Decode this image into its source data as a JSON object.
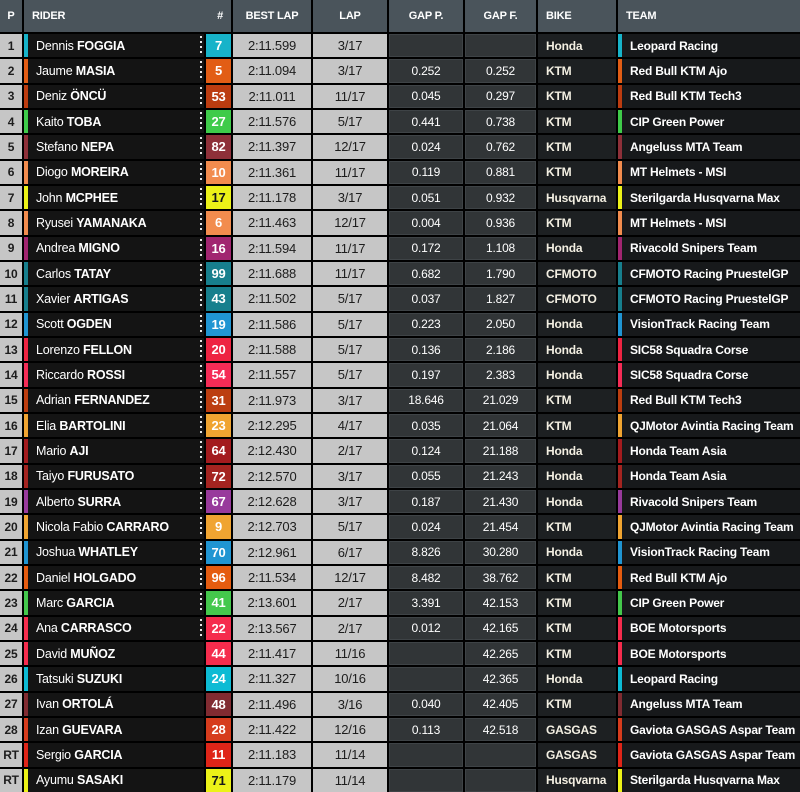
{
  "table": {
    "headers": {
      "p": "P",
      "rider": "RIDER",
      "num": "#",
      "best_lap": "BEST LAP",
      "lap": "LAP",
      "gap_p": "GAP P.",
      "gap_f": "GAP F.",
      "bike": "BIKE",
      "team": "TEAM"
    },
    "rows": [
      {
        "pos": "1",
        "first": "Dennis",
        "last": "FOGGIA",
        "num": "7",
        "color": "#17b3c9",
        "num_text": "#ffffff",
        "best_lap": "2:11.599",
        "lap": "3/17",
        "gap_p": "",
        "gap_f": "",
        "bike": "Honda",
        "team": "Leopard Racing",
        "dotted": true
      },
      {
        "pos": "2",
        "first": "Jaume",
        "last": "MASIA",
        "num": "5",
        "color": "#e25d15",
        "num_text": "#ffffff",
        "best_lap": "2:11.094",
        "lap": "3/17",
        "gap_p": "0.252",
        "gap_f": "0.252",
        "bike": "KTM",
        "team": "Red Bull KTM Ajo",
        "dotted": true
      },
      {
        "pos": "3",
        "first": "Deniz",
        "last": "ÖNCÜ",
        "num": "53",
        "color": "#bc3c10",
        "num_text": "#ffffff",
        "best_lap": "2:11.011",
        "lap": "11/17",
        "gap_p": "0.045",
        "gap_f": "0.297",
        "bike": "KTM",
        "team": "Red Bull KTM Tech3",
        "dotted": true
      },
      {
        "pos": "4",
        "first": "Kaito",
        "last": "TOBA",
        "num": "27",
        "color": "#3fcb4a",
        "num_text": "#ffffff",
        "best_lap": "2:11.576",
        "lap": "5/17",
        "gap_p": "0.441",
        "gap_f": "0.738",
        "bike": "KTM",
        "team": "CIP Green Power",
        "dotted": true
      },
      {
        "pos": "5",
        "first": "Stefano",
        "last": "NEPA",
        "num": "82",
        "color": "#8e3039",
        "num_text": "#ffffff",
        "best_lap": "2:11.397",
        "lap": "12/17",
        "gap_p": "0.024",
        "gap_f": "0.762",
        "bike": "KTM",
        "team": "Angeluss MTA Team",
        "dotted": true
      },
      {
        "pos": "6",
        "first": "Diogo",
        "last": "MOREIRA",
        "num": "10",
        "color": "#f28c4e",
        "num_text": "#ffffff",
        "best_lap": "2:11.361",
        "lap": "11/17",
        "gap_p": "0.119",
        "gap_f": "0.881",
        "bike": "KTM",
        "team": "MT Helmets - MSI",
        "dotted": true
      },
      {
        "pos": "7",
        "first": "John",
        "last": "MCPHEE",
        "num": "17",
        "color": "#ecf218",
        "num_text": "#15181a",
        "best_lap": "2:11.178",
        "lap": "3/17",
        "gap_p": "0.051",
        "gap_f": "0.932",
        "bike": "Husqvarna",
        "team": "Sterilgarda Husqvarna Max",
        "dotted": true
      },
      {
        "pos": "8",
        "first": "Ryusei",
        "last": "YAMANAKA",
        "num": "6",
        "color": "#f28c4e",
        "num_text": "#ffffff",
        "best_lap": "2:11.463",
        "lap": "12/17",
        "gap_p": "0.004",
        "gap_f": "0.936",
        "bike": "KTM",
        "team": "MT Helmets - MSI",
        "dotted": true
      },
      {
        "pos": "9",
        "first": "Andrea",
        "last": "MIGNO",
        "num": "16",
        "color": "#a12570",
        "num_text": "#ffffff",
        "best_lap": "2:11.594",
        "lap": "11/17",
        "gap_p": "0.172",
        "gap_f": "1.108",
        "bike": "Honda",
        "team": "Rivacold Snipers Team",
        "dotted": true
      },
      {
        "pos": "10",
        "first": "Carlos",
        "last": "TATAY",
        "num": "99",
        "color": "#177f8d",
        "num_text": "#ffffff",
        "best_lap": "2:11.688",
        "lap": "11/17",
        "gap_p": "0.682",
        "gap_f": "1.790",
        "bike": "CFMOTO",
        "team": "CFMOTO Racing PruestelGP",
        "dotted": true
      },
      {
        "pos": "11",
        "first": "Xavier",
        "last": "ARTIGAS",
        "num": "43",
        "color": "#177f8d",
        "num_text": "#ffffff",
        "best_lap": "2:11.502",
        "lap": "5/17",
        "gap_p": "0.037",
        "gap_f": "1.827",
        "bike": "CFMOTO",
        "team": "CFMOTO Racing PruestelGP",
        "dotted": true
      },
      {
        "pos": "12",
        "first": "Scott",
        "last": "OGDEN",
        "num": "19",
        "color": "#2095d2",
        "num_text": "#ffffff",
        "best_lap": "2:11.586",
        "lap": "5/17",
        "gap_p": "0.223",
        "gap_f": "2.050",
        "bike": "Honda",
        "team": "VisionTrack Racing Team",
        "dotted": true
      },
      {
        "pos": "13",
        "first": "Lorenzo",
        "last": "FELLON",
        "num": "20",
        "color": "#ee2442",
        "num_text": "#ffffff",
        "best_lap": "2:11.588",
        "lap": "5/17",
        "gap_p": "0.136",
        "gap_f": "2.186",
        "bike": "Honda",
        "team": "SIC58 Squadra Corse",
        "dotted": true
      },
      {
        "pos": "14",
        "first": "Riccardo",
        "last": "ROSSI",
        "num": "54",
        "color": "#f52c56",
        "num_text": "#ffffff",
        "best_lap": "2:11.557",
        "lap": "5/17",
        "gap_p": "0.197",
        "gap_f": "2.383",
        "bike": "Honda",
        "team": "SIC58 Squadra Corse",
        "dotted": true
      },
      {
        "pos": "15",
        "first": "Adrian",
        "last": "FERNANDEZ",
        "num": "31",
        "color": "#bc3e10",
        "num_text": "#ffffff",
        "best_lap": "2:11.973",
        "lap": "3/17",
        "gap_p": "18.646",
        "gap_f": "21.029",
        "bike": "KTM",
        "team": "Red Bull KTM Tech3",
        "dotted": true
      },
      {
        "pos": "16",
        "first": "Elia",
        "last": "BARTOLINI",
        "num": "23",
        "color": "#f0a431",
        "num_text": "#ffffff",
        "best_lap": "2:12.295",
        "lap": "4/17",
        "gap_p": "0.035",
        "gap_f": "21.064",
        "bike": "KTM",
        "team": "QJMotor Avintia Racing Team",
        "dotted": true
      },
      {
        "pos": "17",
        "first": "Mario",
        "last": "AJI",
        "num": "64",
        "color": "#a31b1e",
        "num_text": "#ffffff",
        "best_lap": "2:12.430",
        "lap": "2/17",
        "gap_p": "0.124",
        "gap_f": "21.188",
        "bike": "Honda",
        "team": "Honda Team Asia",
        "dotted": true
      },
      {
        "pos": "18",
        "first": "Taiyo",
        "last": "FURUSATO",
        "num": "72",
        "color": "#a42420",
        "num_text": "#ffffff",
        "best_lap": "2:12.570",
        "lap": "3/17",
        "gap_p": "0.055",
        "gap_f": "21.243",
        "bike": "Honda",
        "team": "Honda Team Asia",
        "dotted": true
      },
      {
        "pos": "19",
        "first": "Alberto",
        "last": "SURRA",
        "num": "67",
        "color": "#983a9c",
        "num_text": "#ffffff",
        "best_lap": "2:12.628",
        "lap": "3/17",
        "gap_p": "0.187",
        "gap_f": "21.430",
        "bike": "Honda",
        "team": "Rivacold Snipers Team",
        "dotted": true
      },
      {
        "pos": "20",
        "first": "Nicola Fabio",
        "last": "CARRARO",
        "num": "9",
        "color": "#f0a431",
        "num_text": "#ffffff",
        "best_lap": "2:12.703",
        "lap": "5/17",
        "gap_p": "0.024",
        "gap_f": "21.454",
        "bike": "KTM",
        "team": "QJMotor Avintia Racing Team",
        "dotted": true
      },
      {
        "pos": "21",
        "first": "Joshua",
        "last": "WHATLEY",
        "num": "70",
        "color": "#2095d2",
        "num_text": "#ffffff",
        "best_lap": "2:12.961",
        "lap": "6/17",
        "gap_p": "8.826",
        "gap_f": "30.280",
        "bike": "Honda",
        "team": "VisionTrack Racing Team",
        "dotted": true
      },
      {
        "pos": "22",
        "first": "Daniel",
        "last": "HOLGADO",
        "num": "96",
        "color": "#e55c10",
        "num_text": "#ffffff",
        "best_lap": "2:11.534",
        "lap": "12/17",
        "gap_p": "8.482",
        "gap_f": "38.762",
        "bike": "KTM",
        "team": "Red Bull KTM Ajo",
        "dotted": true
      },
      {
        "pos": "23",
        "first": "Marc",
        "last": "GARCIA",
        "num": "41",
        "color": "#44c84c",
        "num_text": "#ffffff",
        "best_lap": "2:13.601",
        "lap": "2/17",
        "gap_p": "3.391",
        "gap_f": "42.153",
        "bike": "KTM",
        "team": "CIP Green Power",
        "dotted": true
      },
      {
        "pos": "24",
        "first": "Ana",
        "last": "CARRASCO",
        "num": "22",
        "color": "#f52c4d",
        "num_text": "#ffffff",
        "best_lap": "2:13.567",
        "lap": "2/17",
        "gap_p": "0.012",
        "gap_f": "42.165",
        "bike": "KTM",
        "team": "BOE Motorsports",
        "dotted": true
      },
      {
        "pos": "25",
        "first": "David",
        "last": "MUÑOZ",
        "num": "44",
        "color": "#f52c4d",
        "num_text": "#ffffff",
        "best_lap": "2:11.417",
        "lap": "11/16",
        "gap_p": "",
        "gap_f": "42.265",
        "bike": "KTM",
        "team": "BOE Motorsports",
        "dotted": false
      },
      {
        "pos": "26",
        "first": "Tatsuki",
        "last": "SUZUKI",
        "num": "24",
        "color": "#0dbbd4",
        "num_text": "#ffffff",
        "best_lap": "2:11.327",
        "lap": "10/16",
        "gap_p": "",
        "gap_f": "42.365",
        "bike": "Honda",
        "team": "Leopard Racing",
        "dotted": false
      },
      {
        "pos": "27",
        "first": "Ivan",
        "last": "ORTOLÁ",
        "num": "48",
        "color": "#812b31",
        "num_text": "#ffffff",
        "best_lap": "2:11.496",
        "lap": "3/16",
        "gap_p": "0.040",
        "gap_f": "42.405",
        "bike": "KTM",
        "team": "Angeluss MTA Team",
        "dotted": false
      },
      {
        "pos": "28",
        "first": "Izan",
        "last": "GUEVARA",
        "num": "28",
        "color": "#d63c1d",
        "num_text": "#ffffff",
        "best_lap": "2:11.422",
        "lap": "12/16",
        "gap_p": "0.113",
        "gap_f": "42.518",
        "bike": "GASGAS",
        "team": "Gaviota GASGAS Aspar Team",
        "dotted": false
      },
      {
        "pos": "RT",
        "first": "Sergio",
        "last": "GARCIA",
        "num": "11",
        "color": "#df2518",
        "num_text": "#ffffff",
        "best_lap": "2:11.183",
        "lap": "11/14",
        "gap_p": "",
        "gap_f": "",
        "bike": "GASGAS",
        "team": "Gaviota GASGAS Aspar Team",
        "dotted": false
      },
      {
        "pos": "RT",
        "first": "Ayumu",
        "last": "SASAKI",
        "num": "71",
        "color": "#ecf218",
        "num_text": "#15181a",
        "best_lap": "2:11.179",
        "lap": "11/14",
        "gap_p": "",
        "gap_f": "",
        "bike": "Husqvarna",
        "team": "Sterilgarda Husqvarna Max",
        "dotted": false
      }
    ]
  },
  "colors": {
    "header_bg": "#4a545b",
    "light_cell_bg": "#c6c6c6",
    "gap_cell_bg": "#313537",
    "row_dark_bg": "#141414",
    "page_bg": "#000000"
  }
}
